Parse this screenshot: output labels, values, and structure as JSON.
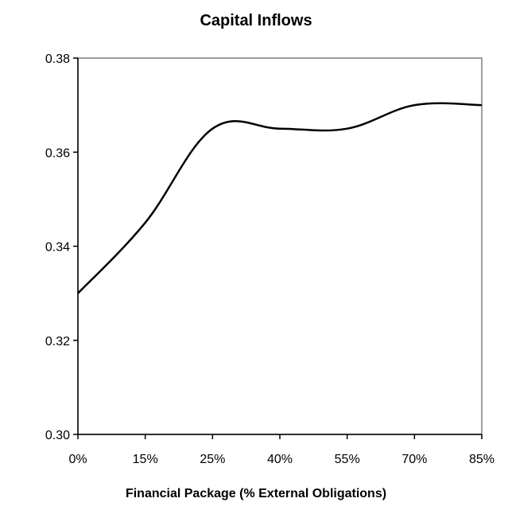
{
  "chart_data": {
    "type": "line",
    "title": "Capital Inflows",
    "xlabel": "Financial Package (% External Obligations)",
    "ylabel": "",
    "x_ticks": [
      "0%",
      "15%",
      "25%",
      "40%",
      "55%",
      "70%",
      "85%"
    ],
    "y_ticks": [
      "0.38",
      "0.36",
      "0.34",
      "0.32",
      "0.30"
    ],
    "ylim": [
      0.3,
      0.38
    ],
    "grid": false,
    "legend": "none",
    "series": [
      {
        "color": "#000000",
        "x": [
          "0%",
          "15%",
          "25%",
          "40%",
          "55%",
          "70%",
          "85%"
        ],
        "values": [
          0.33,
          0.345,
          0.365,
          0.365,
          0.365,
          0.37,
          0.37
        ]
      }
    ]
  }
}
